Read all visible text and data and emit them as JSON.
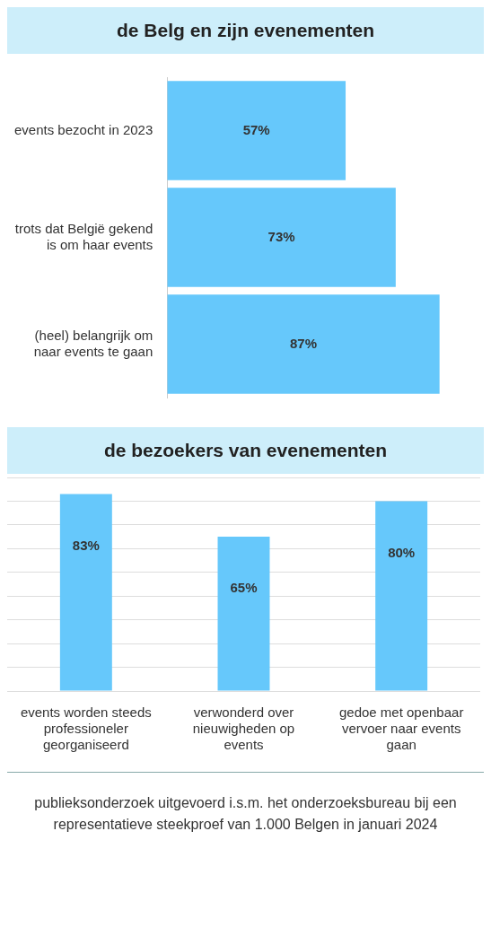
{
  "chart_data": [
    {
      "type": "bar",
      "title": "de Belg en zijn evenementen",
      "orientation": "horizontal",
      "categories": [
        "events bezocht in 2023",
        "trots dat België gekend is om haar events",
        "(heel) belangrijk om naar events te gaan"
      ],
      "values": [
        57,
        73,
        87
      ],
      "value_labels": [
        "57%",
        "73%",
        "87%"
      ],
      "color": "#66c8fb",
      "grid": false
    },
    {
      "type": "bar",
      "title": "de bezoekers van evenementen",
      "categories": [
        "events worden steeds professioneler georganiseerd",
        "verwonderd over nieuwigheden op events",
        "gedoe met openbaar vervoer naar events gaan"
      ],
      "values": [
        83,
        65,
        80
      ],
      "value_labels": [
        "83%",
        "65%",
        "80%"
      ],
      "color": "#66c8fb",
      "grid": "y",
      "tick_labels": "x",
      "annotations": [
        "publieksonderzoek uitgevoerd i.s.m. het onderzoeksbureau bij een representatieve steekproef van 1.000 Belgen in januari 2024"
      ]
    }
  ]
}
